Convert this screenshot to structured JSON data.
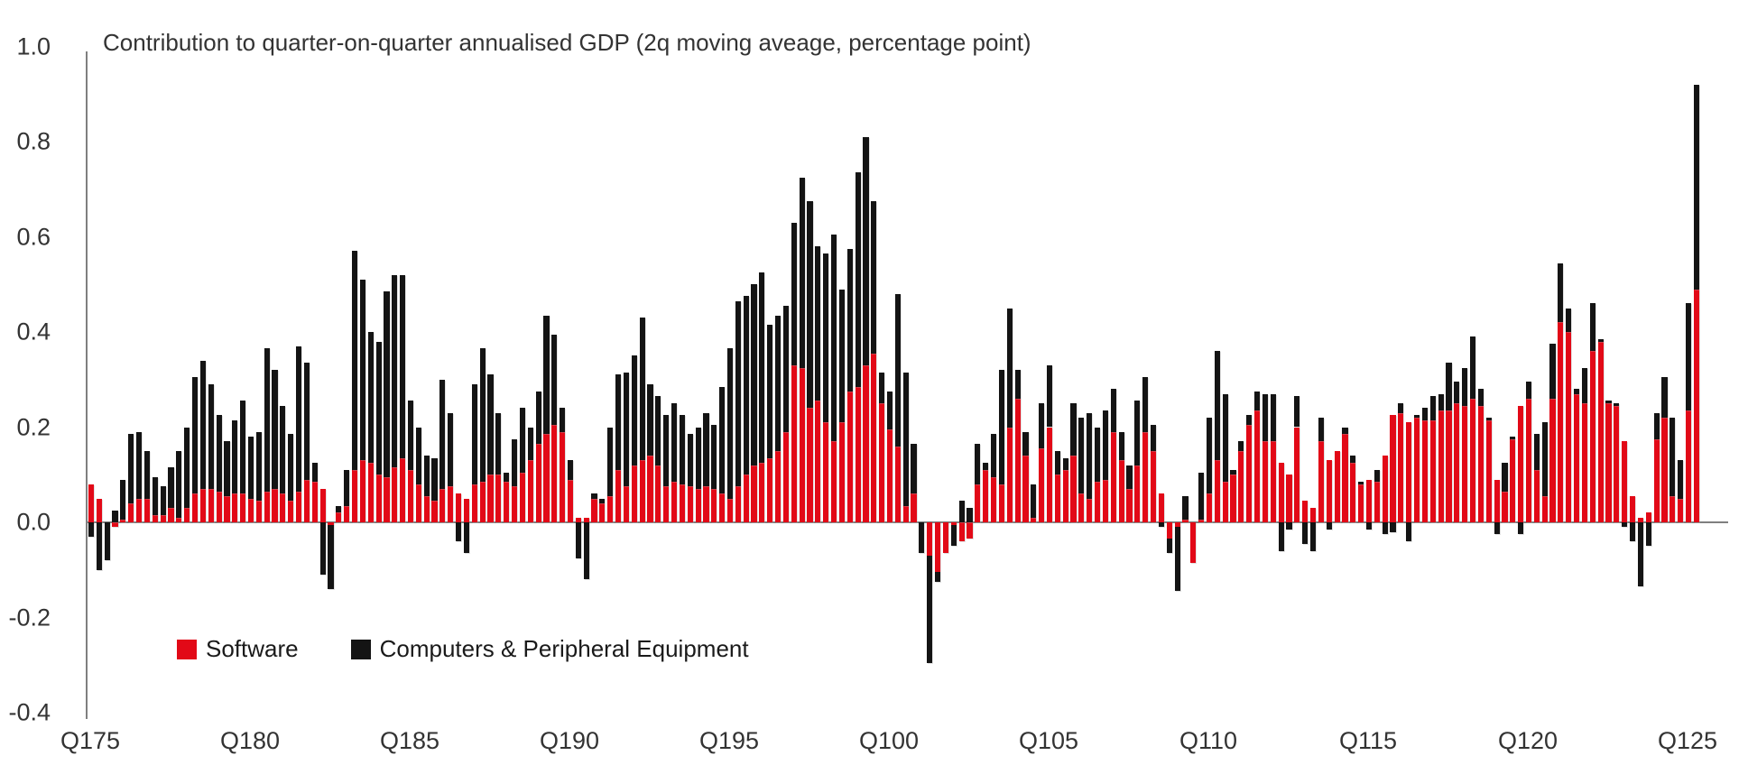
{
  "chart": {
    "title": "Contribution to quarter-on-quarter annualised GDP (2q moving aveage, percentage point)"
  },
  "legend": {
    "software_label": "Software",
    "computers_label": "Computers & Peripheral Equipment"
  },
  "y_axis": {
    "tick_labels": [
      "1.0",
      "0.8",
      "0.6",
      "0.4",
      "0.2",
      "0.0",
      "-0.2",
      "-0.4"
    ],
    "min": -0.4,
    "max": 1.0
  },
  "x_axis": {
    "tick_labels": [
      "Q175",
      "Q180",
      "Q185",
      "Q190",
      "Q195",
      "Q100",
      "Q105",
      "Q110",
      "Q115",
      "Q120",
      "Q125"
    ]
  },
  "colors": {
    "software": "#e20917",
    "computers": "#141414",
    "axis": "#7f7f7f",
    "text": "#333333"
  },
  "chart_data": {
    "type": "bar",
    "stacked": true,
    "title": "Contribution to quarter-on-quarter annualised GDP (2q moving aveage, percentage point)",
    "xlabel": "",
    "ylabel": "percentage point",
    "ylim": [
      -0.4,
      1.0
    ],
    "grid": false,
    "legend_position": "bottom-left-inside",
    "frequency": "quarterly",
    "x_start": "1975Q1",
    "x_end": "2025Q2",
    "x_tick_labels": [
      "Q175",
      "Q180",
      "Q185",
      "Q190",
      "Q195",
      "Q100",
      "Q105",
      "Q110",
      "Q115",
      "Q120",
      "Q125"
    ],
    "series": [
      {
        "name": "Software",
        "color": "#e20917",
        "values": [
          0.08,
          0.05,
          0,
          -0.01,
          0.005,
          0.04,
          0.05,
          0.05,
          0.015,
          0.015,
          0.03,
          0.01,
          0.03,
          0.06,
          0.07,
          0.07,
          0.065,
          0.055,
          0.06,
          0.06,
          0.05,
          0.045,
          0.065,
          0.07,
          0.06,
          0.045,
          0.065,
          0.09,
          0.085,
          0.07,
          -0.005,
          0.02,
          0.035,
          0.11,
          0.13,
          0.125,
          0.1,
          0.095,
          0.115,
          0.135,
          0.11,
          0.08,
          0.055,
          0.045,
          0.07,
          0.075,
          0.06,
          0.05,
          0.08,
          0.085,
          0.1,
          0.1,
          0.085,
          0.075,
          0.105,
          0.13,
          0.165,
          0.185,
          0.205,
          0.19,
          0.09,
          0.01,
          0.01,
          0.05,
          0.04,
          0.055,
          0.11,
          0.075,
          0.12,
          0.13,
          0.14,
          0.12,
          0.075,
          0.085,
          0.08,
          0.075,
          0.07,
          0.075,
          0.07,
          0.06,
          0.05,
          0.075,
          0.1,
          0.12,
          0.125,
          0.135,
          0.15,
          0.19,
          0.33,
          0.325,
          0.24,
          0.255,
          0.21,
          0.17,
          0.21,
          0.275,
          0.285,
          0.33,
          0.355,
          0.25,
          0.195,
          0.16,
          0.035,
          0.06,
          0,
          -0.07,
          -0.105,
          -0.065,
          -0.005,
          -0.04,
          -0.035,
          0.08,
          0.11,
          0.095,
          0.08,
          0.2,
          0.26,
          0.14,
          0.01,
          0.155,
          0.2,
          0.1,
          0.11,
          0.14,
          0.06,
          0.05,
          0.085,
          0.09,
          0.19,
          0.13,
          0.07,
          0.12,
          0.19,
          0.15,
          0.06,
          -0.035,
          -0.01,
          0.005,
          -0.085,
          0.005,
          0.06,
          0.13,
          0.085,
          0.1,
          0.15,
          0.205,
          0.235,
          0.17,
          0.17,
          0.125,
          0.1,
          0.2,
          0.045,
          0.03,
          0.17,
          0.13,
          0.15,
          0.185,
          0.125,
          0.08,
          0.09,
          0.085,
          0.14,
          0.225,
          0.23,
          0.21,
          0.22,
          0.215,
          0.215,
          0.235,
          0.235,
          0.25,
          0.245,
          0.26,
          0.245,
          0.215,
          0.09,
          0.065,
          0.175,
          0.245,
          0.26,
          0.11,
          0.055,
          0.26,
          0.42,
          0.4,
          0.27,
          0.25,
          0.36,
          0.38,
          0.25,
          0.245,
          0.17,
          0.055,
          0.01,
          0.02,
          0.175,
          0.22,
          0.055,
          0.05,
          0.235,
          0.49
        ]
      },
      {
        "name": "Computers & Peripheral Equipment",
        "color": "#141414",
        "values": [
          -0.03,
          -0.1,
          -0.08,
          0.025,
          0.085,
          0.145,
          0.14,
          0.1,
          0.08,
          0.06,
          0.085,
          0.14,
          0.17,
          0.245,
          0.27,
          0.22,
          0.16,
          0.115,
          0.155,
          0.195,
          0.13,
          0.145,
          0.3,
          0.25,
          0.185,
          0.14,
          0.305,
          0.245,
          0.04,
          -0.11,
          -0.135,
          0.015,
          0.075,
          0.46,
          0.38,
          0.275,
          0.28,
          0.39,
          0.405,
          0.385,
          0.145,
          0.12,
          0.085,
          0.09,
          0.23,
          0.155,
          -0.04,
          -0.065,
          0.21,
          0.28,
          0.21,
          0.13,
          0.02,
          0.1,
          0.135,
          0.07,
          0.11,
          0.25,
          0.19,
          0.05,
          0.04,
          -0.075,
          -0.12,
          0.01,
          0.01,
          0.145,
          0.2,
          0.24,
          0.23,
          0.3,
          0.15,
          0.145,
          0.15,
          0.165,
          0.145,
          0.11,
          0.13,
          0.155,
          0.135,
          0.225,
          0.315,
          0.39,
          0.375,
          0.38,
          0.4,
          0.28,
          0.285,
          0.265,
          0.3,
          0.4,
          0.435,
          0.325,
          0.355,
          0.435,
          0.28,
          0.3,
          0.45,
          0.48,
          0.32,
          0.065,
          0.08,
          0.32,
          0.28,
          0.105,
          -0.065,
          -0.225,
          -0.02,
          0,
          -0.045,
          0.045,
          0.03,
          0.085,
          0.015,
          0.09,
          0.24,
          0.25,
          0.06,
          0.05,
          0.07,
          0.095,
          0.13,
          0.05,
          0.025,
          0.11,
          0.16,
          0.18,
          0.115,
          0.145,
          0.09,
          0.06,
          0.05,
          0.135,
          0.115,
          0.055,
          -0.01,
          -0.03,
          -0.135,
          0.05,
          0,
          0.1,
          0.16,
          0.23,
          0.185,
          0.01,
          0.02,
          0.02,
          0.04,
          0.1,
          0.1,
          -0.06,
          -0.015,
          0.065,
          -0.045,
          -0.06,
          0.05,
          -0.015,
          0,
          0.015,
          0.015,
          0.005,
          -0.015,
          0.025,
          -0.025,
          -0.02,
          0.02,
          -0.04,
          0.005,
          0.025,
          0.05,
          0.035,
          0.1,
          0.045,
          0.08,
          0.13,
          0.035,
          0.005,
          -0.025,
          0.06,
          0.005,
          -0.025,
          0.035,
          0.075,
          0.155,
          0.115,
          0.125,
          0.05,
          0.01,
          0.075,
          0.1,
          0.005,
          0.005,
          0.005,
          -0.01,
          -0.04,
          -0.135,
          -0.05,
          0.055,
          0.085,
          0.165,
          0.08,
          0.225,
          0.43
        ]
      }
    ]
  }
}
